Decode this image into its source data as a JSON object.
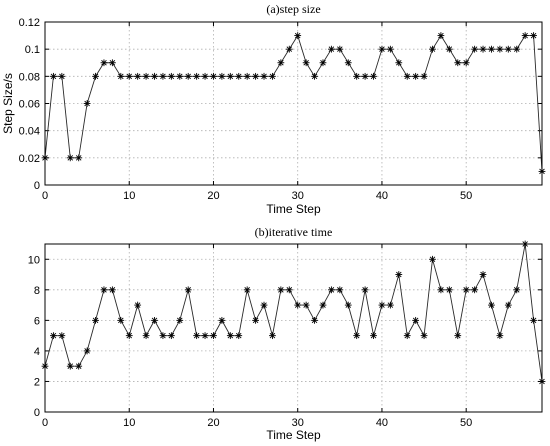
{
  "chart_data": [
    {
      "type": "line",
      "title": "(a)step size",
      "xlabel": "Time Step",
      "ylabel": "Step Size/s",
      "xlim": [
        0,
        59
      ],
      "ylim": [
        0,
        0.12
      ],
      "xticks": [
        0,
        10,
        20,
        30,
        40,
        50
      ],
      "yticks": [
        0,
        0.02,
        0.04,
        0.06,
        0.08,
        0.1,
        0.12
      ],
      "grid": true,
      "marker": "asterisk",
      "series": [
        {
          "x": [
            0,
            1,
            2,
            3,
            4,
            5,
            6,
            7,
            8,
            9,
            10,
            11,
            12,
            13,
            14,
            15,
            16,
            17,
            18,
            19,
            20,
            21,
            22,
            23,
            24,
            25,
            26,
            27,
            28,
            29,
            30,
            31,
            32,
            33,
            34,
            35,
            36,
            37,
            38,
            39,
            40,
            41,
            42,
            43,
            44,
            45,
            46,
            47,
            48,
            49,
            50,
            51,
            52,
            53,
            54,
            55,
            56,
            57,
            58,
            59
          ],
          "values": [
            0.02,
            0.08,
            0.08,
            0.02,
            0.02,
            0.06,
            0.08,
            0.09,
            0.09,
            0.08,
            0.08,
            0.08,
            0.08,
            0.08,
            0.08,
            0.08,
            0.08,
            0.08,
            0.08,
            0.08,
            0.08,
            0.08,
            0.08,
            0.08,
            0.08,
            0.08,
            0.08,
            0.08,
            0.09,
            0.1,
            0.11,
            0.09,
            0.08,
            0.09,
            0.1,
            0.1,
            0.09,
            0.08,
            0.08,
            0.08,
            0.1,
            0.1,
            0.09,
            0.08,
            0.08,
            0.08,
            0.1,
            0.11,
            0.1,
            0.09,
            0.09,
            0.1,
            0.1,
            0.1,
            0.1,
            0.1,
            0.1,
            0.11,
            0.11,
            0.01
          ]
        }
      ]
    },
    {
      "type": "line",
      "title": "(b)iterative time",
      "xlabel": "Time Step",
      "ylabel": "",
      "xlim": [
        0,
        59
      ],
      "ylim": [
        0,
        11
      ],
      "xticks": [
        0,
        10,
        20,
        30,
        40,
        50
      ],
      "yticks": [
        0,
        2,
        4,
        6,
        8,
        10
      ],
      "grid": true,
      "marker": "asterisk",
      "series": [
        {
          "x": [
            0,
            1,
            2,
            3,
            4,
            5,
            6,
            7,
            8,
            9,
            10,
            11,
            12,
            13,
            14,
            15,
            16,
            17,
            18,
            19,
            20,
            21,
            22,
            23,
            24,
            25,
            26,
            27,
            28,
            29,
            30,
            31,
            32,
            33,
            34,
            35,
            36,
            37,
            38,
            39,
            40,
            41,
            42,
            43,
            44,
            45,
            46,
            47,
            48,
            49,
            50,
            51,
            52,
            53,
            54,
            55,
            56,
            57,
            58,
            59
          ],
          "values": [
            3,
            5,
            5,
            3,
            3,
            4,
            6,
            8,
            8,
            6,
            5,
            7,
            5,
            6,
            5,
            5,
            6,
            8,
            5,
            5,
            5,
            6,
            5,
            5,
            8,
            6,
            7,
            5,
            8,
            8,
            7,
            7,
            6,
            7,
            8,
            8,
            7,
            5,
            8,
            5,
            7,
            7,
            9,
            5,
            6,
            5,
            10,
            8,
            8,
            5,
            8,
            8,
            9,
            7,
            5,
            7,
            8,
            11,
            6,
            2
          ]
        }
      ]
    }
  ]
}
